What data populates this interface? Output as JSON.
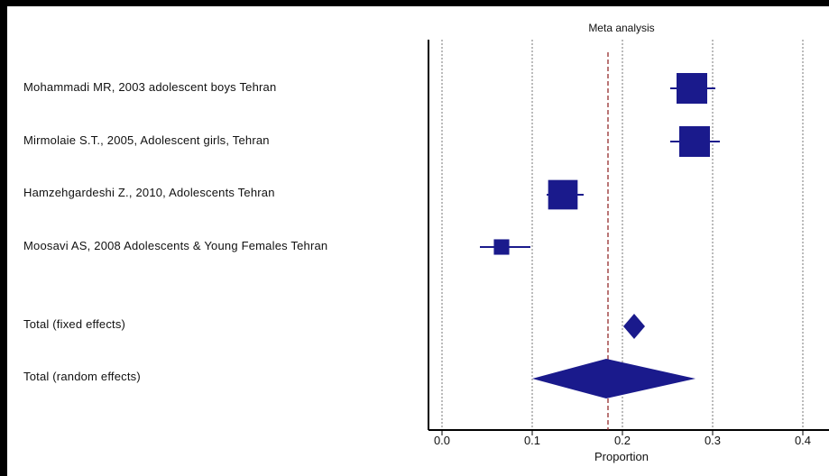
{
  "chart_data": {
    "type": "forest",
    "title": "Meta analysis",
    "xlabel": "Proportion",
    "xlim": [
      -0.01,
      0.41
    ],
    "x_ticks": [
      "0.0",
      "0.1",
      "0.2",
      "0.3",
      "0.4"
    ],
    "x_tick_values": [
      0.0,
      0.1,
      0.2,
      0.3,
      0.4
    ],
    "reference_line": 0.184,
    "studies": [
      {
        "label": "Mohammadi MR, 2003  adolescent boys  Tehran",
        "estimate": 0.277,
        "lower": 0.253,
        "upper": 0.303,
        "weight": 1.0
      },
      {
        "label": "Mirmolaie S.T., 2005, Adolescent girls, Tehran",
        "estimate": 0.28,
        "lower": 0.253,
        "upper": 0.308,
        "weight": 1.0
      },
      {
        "label": "Hamzehgardeshi Z., 2010, Adolescents Tehran",
        "estimate": 0.134,
        "lower": 0.116,
        "upper": 0.157,
        "weight": 0.95
      },
      {
        "label": "Moosavi AS, 2008  Adolescents & Young Females  Tehran",
        "estimate": 0.066,
        "lower": 0.042,
        "upper": 0.098,
        "weight": 0.35
      }
    ],
    "totals": [
      {
        "label": "Total (fixed effects)",
        "estimate": 0.213,
        "lower": 0.201,
        "upper": 0.225
      },
      {
        "label": "Total (random effects)",
        "estimate": 0.182,
        "lower": 0.1,
        "upper": 0.281
      }
    ],
    "grid": true,
    "colors": {
      "marker": "#1a1a8c",
      "reference": "#8b1a1a",
      "grid": "#777777"
    }
  }
}
